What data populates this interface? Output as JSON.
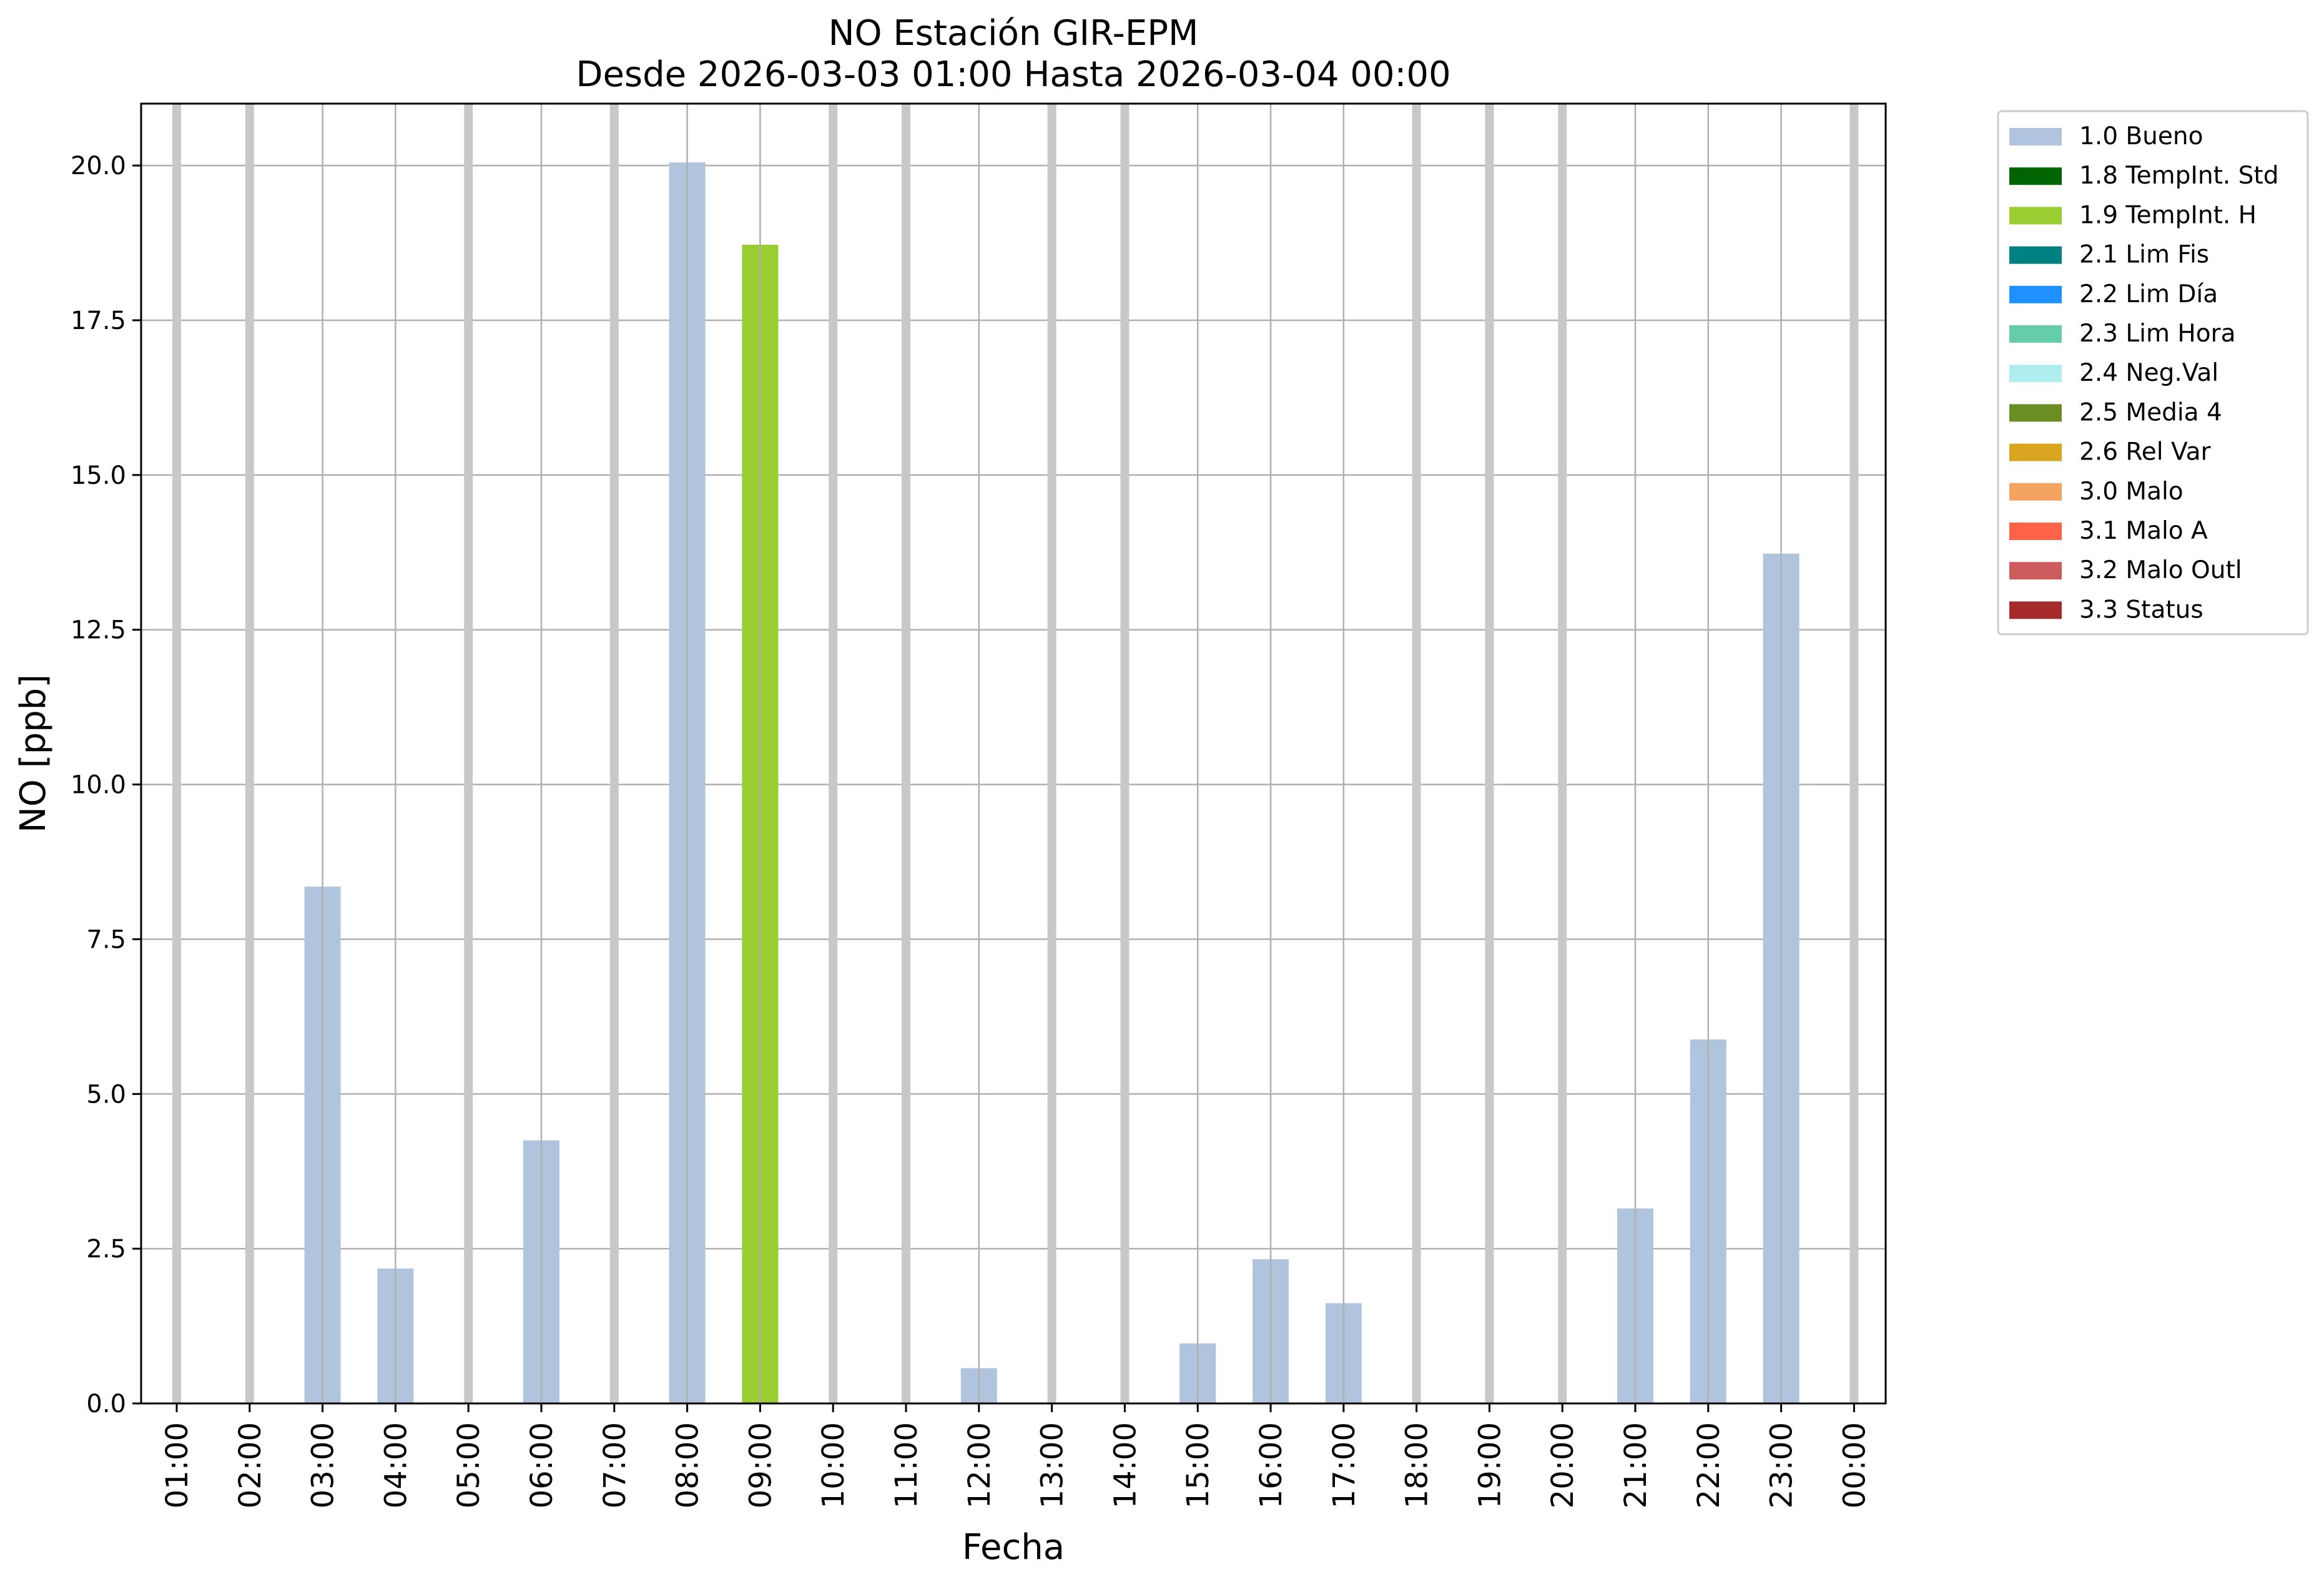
{
  "chart_data": {
    "type": "bar",
    "title": "NO Estación GIR-EPM",
    "subtitle": "Desde 2026-03-03 01:00 Hasta 2026-03-04 00:00",
    "xlabel": "Fecha",
    "ylabel": "NO [ppb]",
    "ylim": [
      0,
      21
    ],
    "yticks": [
      "0.0",
      "2.5",
      "5.0",
      "7.5",
      "10.0",
      "12.5",
      "15.0",
      "17.5",
      "20.0"
    ],
    "grid": true,
    "legend_position": "outside-top-right",
    "categories": [
      "01:00",
      "02:00",
      "03:00",
      "04:00",
      "05:00",
      "06:00",
      "07:00",
      "08:00",
      "09:00",
      "10:00",
      "11:00",
      "12:00",
      "13:00",
      "14:00",
      "15:00",
      "16:00",
      "17:00",
      "18:00",
      "19:00",
      "20:00",
      "21:00",
      "22:00",
      "23:00",
      "00:00"
    ],
    "values": [
      null,
      null,
      8.35,
      2.18,
      null,
      4.25,
      null,
      20.05,
      18.72,
      null,
      null,
      0.57,
      null,
      null,
      0.97,
      2.33,
      1.62,
      null,
      null,
      null,
      3.15,
      5.88,
      13.73,
      null
    ],
    "flags": [
      null,
      null,
      "1.0 Bueno",
      "1.0 Bueno",
      null,
      "1.0 Bueno",
      null,
      "1.0 Bueno",
      "1.9 TempInt. H",
      null,
      null,
      "1.0 Bueno",
      null,
      null,
      "1.0 Bueno",
      "1.0 Bueno",
      "1.0 Bueno",
      null,
      null,
      null,
      "1.0 Bueno",
      "1.0 Bueno",
      "1.0 Bueno",
      null
    ],
    "missing_marker_color": "#c8c8c8",
    "legend": [
      {
        "label": "1.0 Bueno",
        "color": "#b0c4de"
      },
      {
        "label": "1.8 TempInt. Std",
        "color": "#006400"
      },
      {
        "label": "1.9 TempInt. H",
        "color": "#9acd32"
      },
      {
        "label": "2.1 Lim Fis",
        "color": "#008080"
      },
      {
        "label": "2.2 Lim Día",
        "color": "#1e90ff"
      },
      {
        "label": "2.3 Lim Hora",
        "color": "#66cdaa"
      },
      {
        "label": "2.4 Neg.Val",
        "color": "#afeeee"
      },
      {
        "label": "2.5 Media 4",
        "color": "#6b8e23"
      },
      {
        "label": "2.6 Rel Var",
        "color": "#daa520"
      },
      {
        "label": "3.0 Malo",
        "color": "#f4a460"
      },
      {
        "label": "3.1 Malo A",
        "color": "#ff6347"
      },
      {
        "label": "3.2 Malo Outl",
        "color": "#cd5c5c"
      },
      {
        "label": "3.3 Status",
        "color": "#a52a2a"
      }
    ]
  }
}
